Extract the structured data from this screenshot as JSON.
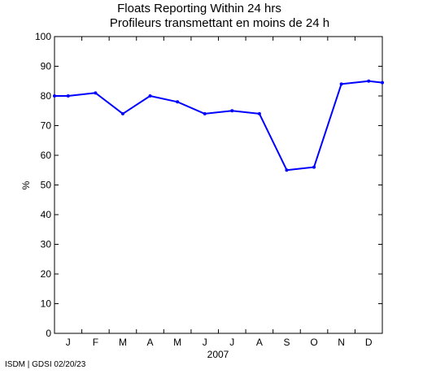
{
  "chart_data": {
    "type": "line",
    "title": "Floats Reporting Within 24 hrs",
    "subtitle": "Profileurs transmettant en moins de 24 h",
    "ylabel": "%",
    "xlabel": "2007",
    "categories": [
      "J",
      "F",
      "M",
      "A",
      "M",
      "J",
      "J",
      "A",
      "S",
      "O",
      "N",
      "D"
    ],
    "x": [
      0.5,
      1.5,
      2.5,
      3.5,
      4.5,
      5.5,
      6.5,
      7.5,
      8.5,
      9.5,
      10.5,
      11.5
    ],
    "series": [
      {
        "x": [
          0,
          0.5,
          1.5,
          2.5,
          3.5,
          4.5,
          5.5,
          6.5,
          7.5,
          8.5,
          9.5,
          10.5,
          11.5,
          12
        ],
        "values": [
          80,
          80,
          81,
          74,
          80,
          78,
          74,
          75,
          74,
          55,
          56,
          84,
          85,
          84.5
        ],
        "color": "#0000ff"
      }
    ],
    "xlim": [
      0,
      12
    ],
    "ylim": [
      0,
      100
    ],
    "yticks": [
      0,
      10,
      20,
      30,
      40,
      50,
      60,
      70,
      80,
      90,
      100
    ],
    "grid": false
  },
  "footer": "ISDM | GDSI 02/20/23"
}
